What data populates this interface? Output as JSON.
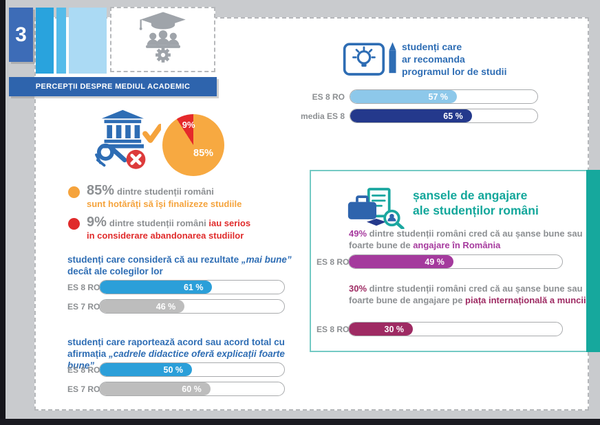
{
  "banner": {
    "number": "3",
    "title": "PERCEPȚII DESPRE MEDIUL ACADEMIC"
  },
  "recommend": {
    "title_lines": [
      "studenți care",
      "ar recomanda",
      "programul lor de studii"
    ]
  },
  "completion": {
    "bullet1": {
      "pct": "85%",
      "rest": "dintre studenții români",
      "line2": "sunt hotărâți să își finalizeze studiile"
    },
    "bullet2": {
      "pct": "9%",
      "rest": "dintre studenții români ",
      "em": "iau serios",
      "line2": "in considerare abandonarea studiilor"
    }
  },
  "results": {
    "heading_pre": "studenți care consideră că au rezultate ",
    "heading_quote": "„mai bune”",
    "heading_post": " decât ale colegilor lor"
  },
  "teaching": {
    "heading_pre": "studenți care raportează acord sau acord total cu afirmația ",
    "heading_quote": "„cadrele didactice oferă explicații foarte bune”"
  },
  "employment": {
    "title_lines": [
      "șansele de angajare",
      "ale studenților români"
    ],
    "para1": {
      "pct": "49%",
      "text": " dintre studenții români cred că au șanse bune sau foarte bune de ",
      "em": "angajare în România"
    },
    "para2": {
      "pct": "30%",
      "text": " dintre studenții români cred că au șanse bune sau foarte bune de angajare pe ",
      "em": "piața internațională a muncii"
    }
  },
  "colors": {
    "light_blue": "#8DC8EA",
    "navy": "#24398C",
    "medium_blue": "#2B9FD9",
    "gray_bar": "#BDBDBD",
    "magenta": "#A43A9D",
    "wine": "#9E2B63",
    "orange": "#F7A941",
    "red": "#E5292B",
    "teal": "#16A89D",
    "heading_blue": "#2E6DB4",
    "banner_blue": "#2E64AD"
  },
  "chart_data": [
    {
      "type": "bar",
      "title": "studenți care ar recomanda programul lor de studii",
      "categories": [
        "ES 8 RO",
        "media ES 8"
      ],
      "values": [
        57,
        65
      ],
      "value_labels": [
        "57 %",
        "65 %"
      ],
      "colors": [
        "#8DC8EA",
        "#24398C"
      ],
      "xlim": [
        0,
        100
      ]
    },
    {
      "type": "pie",
      "title": "finalizarea studiilor",
      "labels": [
        "85%",
        "9%"
      ],
      "values": [
        85,
        9
      ],
      "colors": [
        "#F7A941",
        "#E5292B"
      ]
    },
    {
      "type": "bar",
      "title": "studenți care consideră că au rezultate „mai bune” decât ale colegilor lor",
      "categories": [
        "ES 8 RO",
        "ES 7 RO"
      ],
      "values": [
        61,
        46
      ],
      "value_labels": [
        "61 %",
        "46 %"
      ],
      "colors": [
        "#2B9FD9",
        "#BDBDBD"
      ],
      "xlim": [
        0,
        100
      ]
    },
    {
      "type": "bar",
      "title": "studenți care raportează acord sau acord total cu afirmația „cadrele didactice oferă explicații foarte bune”",
      "categories": [
        "ES 8 RO",
        "ES 7 RO"
      ],
      "values": [
        50,
        60
      ],
      "value_labels": [
        "50 %",
        "60 %"
      ],
      "colors": [
        "#2B9FD9",
        "#BDBDBD"
      ],
      "xlim": [
        0,
        100
      ]
    },
    {
      "type": "bar",
      "title": "șanse bune sau foarte bune de angajare în România",
      "categories": [
        "ES 8 RO"
      ],
      "values": [
        49
      ],
      "value_labels": [
        "49 %"
      ],
      "colors": [
        "#A43A9D"
      ],
      "xlim": [
        0,
        100
      ]
    },
    {
      "type": "bar",
      "title": "șanse bune sau foarte bune de angajare pe piața internațională a muncii",
      "categories": [
        "ES 8 RO"
      ],
      "values": [
        30
      ],
      "value_labels": [
        "30 %"
      ],
      "colors": [
        "#9E2B63"
      ],
      "xlim": [
        0,
        100
      ]
    }
  ]
}
